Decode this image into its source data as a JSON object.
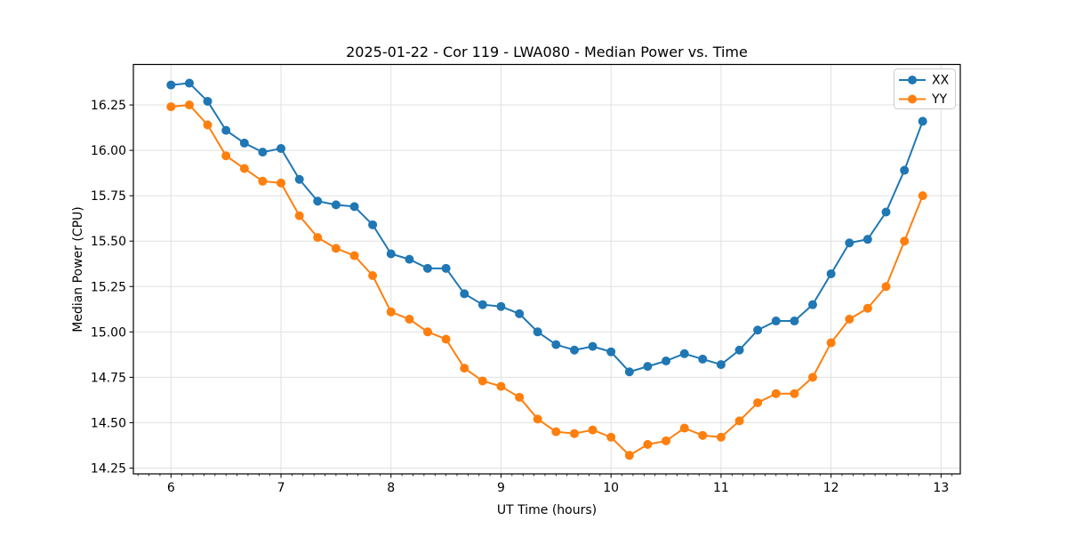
{
  "figure": {
    "background": "#ffffff"
  },
  "chart_data": {
    "type": "line",
    "title": "2025-01-22 - Cor 119 - LWA080 - Median Power vs. Time",
    "xlabel": "UT Time (hours)",
    "ylabel": "Median Power (CPU)",
    "xlim": [
      5.658,
      13.175
    ],
    "ylim": [
      14.218,
      16.473
    ],
    "xticks": [
      6,
      7,
      8,
      9,
      10,
      11,
      12,
      13
    ],
    "yticks": [
      14.25,
      14.5,
      14.75,
      15.0,
      15.25,
      15.5,
      15.75,
      16.0,
      16.25
    ],
    "x_minor_tick_step": 0.1,
    "grid": true,
    "grid_color": "#e0e0e0",
    "spine_color": "#000000",
    "legend_position": "upper right",
    "marker": "circle",
    "x": [
      6.0,
      6.167,
      6.333,
      6.5,
      6.667,
      6.833,
      7.0,
      7.167,
      7.333,
      7.5,
      7.667,
      7.833,
      8.0,
      8.167,
      8.333,
      8.5,
      8.667,
      8.833,
      9.0,
      9.167,
      9.333,
      9.5,
      9.667,
      9.833,
      10.0,
      10.167,
      10.333,
      10.5,
      10.667,
      10.833,
      11.0,
      11.167,
      11.333,
      11.5,
      11.667,
      11.833,
      12.0,
      12.167,
      12.333,
      12.5,
      12.667,
      12.833
    ],
    "series": [
      {
        "name": "XX",
        "color": "#1f77b4",
        "values": [
          16.36,
          16.37,
          16.27,
          16.11,
          16.04,
          15.99,
          16.01,
          15.84,
          15.72,
          15.7,
          15.69,
          15.59,
          15.43,
          15.4,
          15.35,
          15.35,
          15.21,
          15.15,
          15.14,
          15.1,
          15.0,
          14.93,
          14.9,
          14.92,
          14.89,
          14.78,
          14.81,
          14.84,
          14.88,
          14.85,
          14.82,
          14.9,
          15.01,
          15.06,
          15.06,
          15.15,
          15.32,
          15.49,
          15.51,
          15.66,
          15.89,
          16.16
        ]
      },
      {
        "name": "YY",
        "color": "#ff7f0e",
        "values": [
          16.24,
          16.25,
          16.14,
          15.97,
          15.9,
          15.83,
          15.82,
          15.64,
          15.52,
          15.46,
          15.42,
          15.31,
          15.11,
          15.07,
          15.0,
          14.96,
          14.8,
          14.73,
          14.7,
          14.64,
          14.52,
          14.45,
          14.44,
          14.46,
          14.42,
          14.32,
          14.38,
          14.4,
          14.47,
          14.43,
          14.42,
          14.51,
          14.61,
          14.66,
          14.66,
          14.75,
          14.94,
          15.07,
          15.13,
          15.25,
          15.5,
          15.75
        ]
      }
    ]
  }
}
